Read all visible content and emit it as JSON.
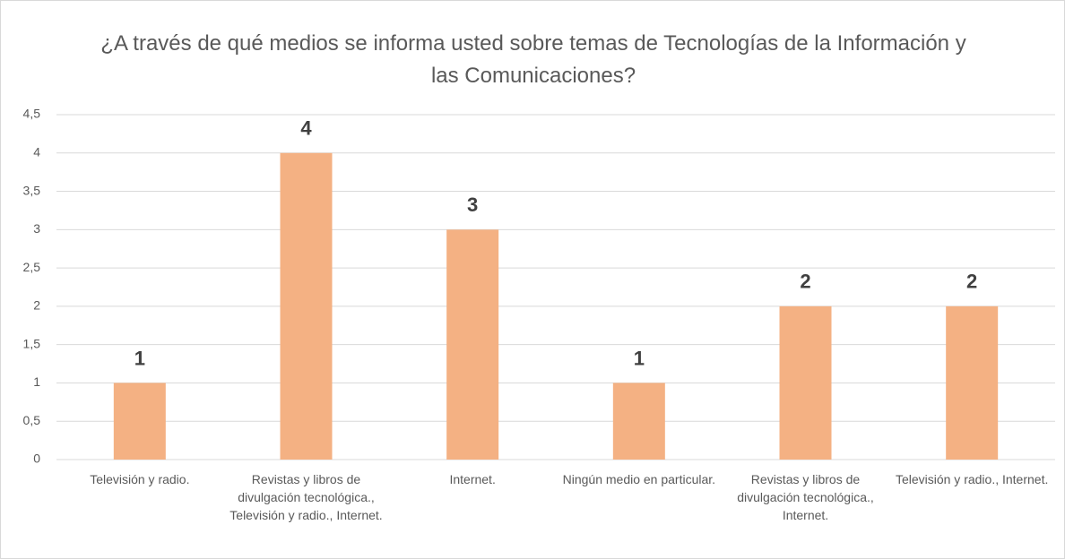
{
  "chart_data": {
    "type": "bar",
    "title": "¿A través de qué medios se informa usted sobre temas de Tecnologías de la Información y las Comunicaciones?",
    "categories": [
      "Televisión y radio.",
      "Revistas y libros de divulgación tecnológica., Televisión y radio., Internet.",
      "Internet.",
      "Ningún medio en particular.",
      "Revistas y libros de divulgación tecnológica., Internet.",
      "Televisión y radio., Internet."
    ],
    "values": [
      1,
      4,
      3,
      1,
      2,
      2
    ],
    "color": "#f4b183",
    "ylim": [
      0,
      4.5
    ],
    "yticks": [
      0,
      {
        "value": 0.5,
        "label": "0,5"
      },
      1,
      {
        "value": 1.5,
        "label": "1,5"
      },
      2,
      {
        "value": 2.5,
        "label": "2,5"
      },
      3,
      {
        "value": 3.5,
        "label": "3,5"
      },
      4,
      {
        "value": 4.5,
        "label": "4,5"
      }
    ],
    "grid": true
  }
}
